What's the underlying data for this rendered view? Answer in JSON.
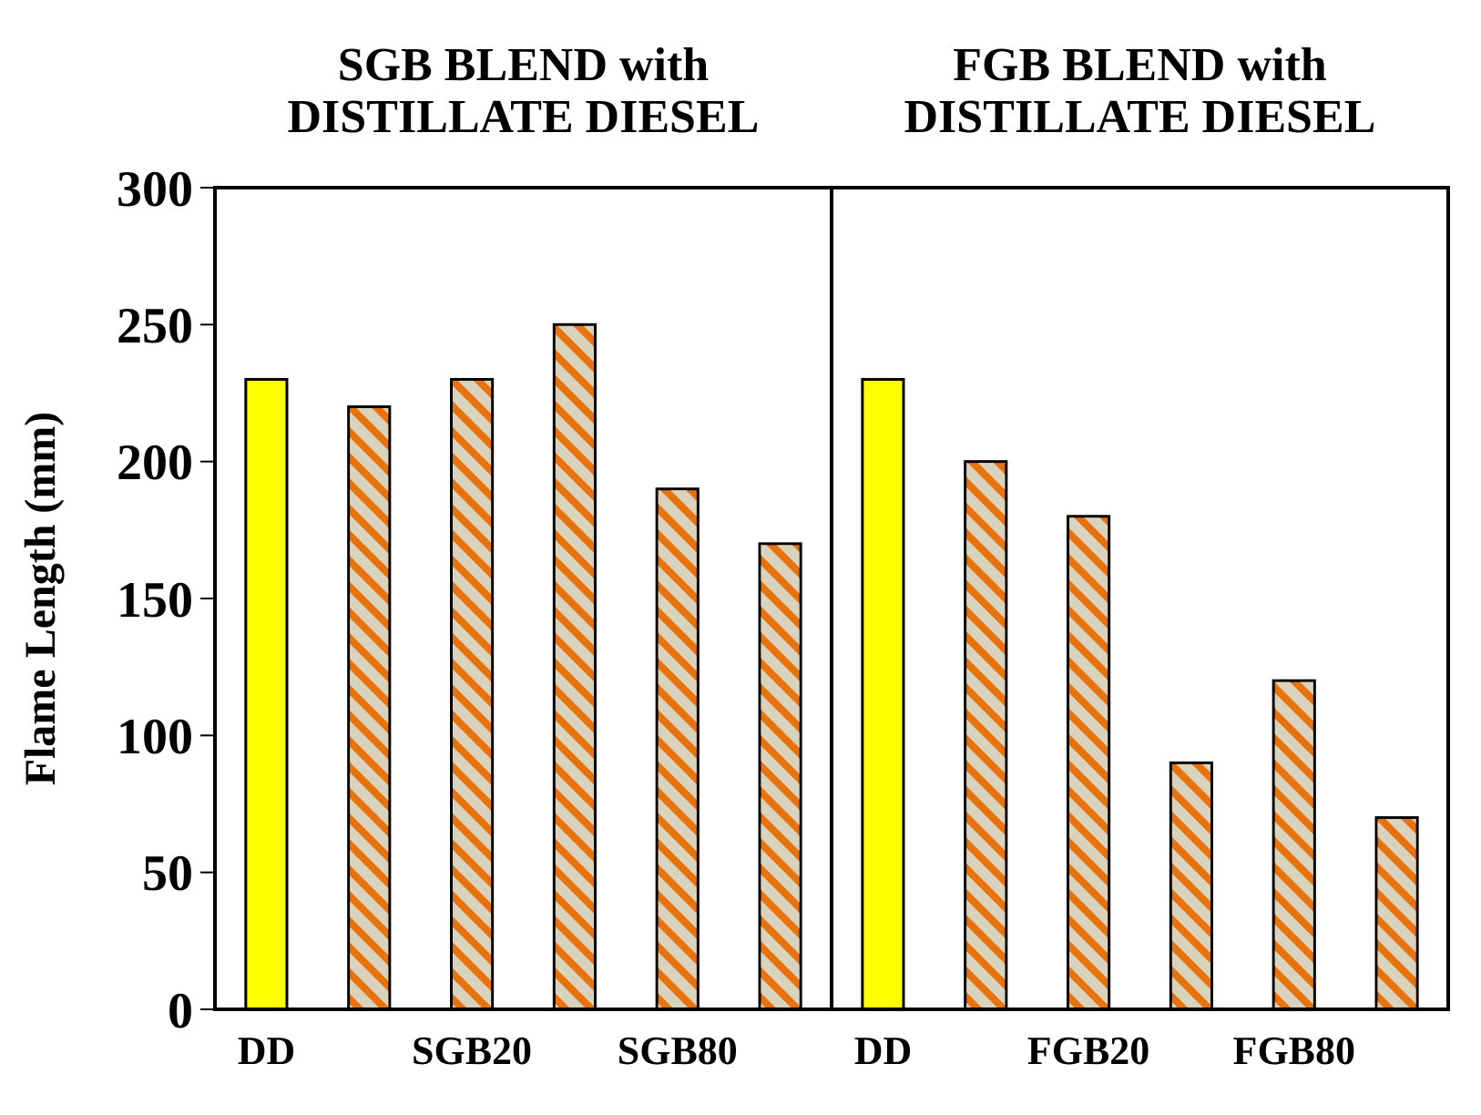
{
  "chart_data": {
    "type": "bar",
    "ylabel": "Flame Length (mm)",
    "categories": [
      "DD",
      null,
      "SGB20",
      null,
      "SGB80",
      null,
      "DD",
      null,
      "FGB20",
      null,
      "FGB80",
      null
    ],
    "values": [
      230,
      220,
      230,
      250,
      190,
      170,
      230,
      200,
      180,
      90,
      120,
      70
    ],
    "colors": [
      "#ffff00",
      "#e8720c",
      "#e8720c",
      "#e8720c",
      "#e8720c",
      "#e8720c",
      "#ffff00",
      "#e8720c",
      "#e8720c",
      "#e8720c",
      "#e8720c",
      "#e8720c"
    ],
    "ylim": [
      0,
      300
    ],
    "yticks": [
      0,
      50,
      100,
      150,
      200,
      250,
      300
    ],
    "grid": false,
    "annotations": [
      "SGB BLEND with DISTILLATE DIESEL",
      "FGB BLEND with DISTILLATE DIESEL"
    ]
  }
}
